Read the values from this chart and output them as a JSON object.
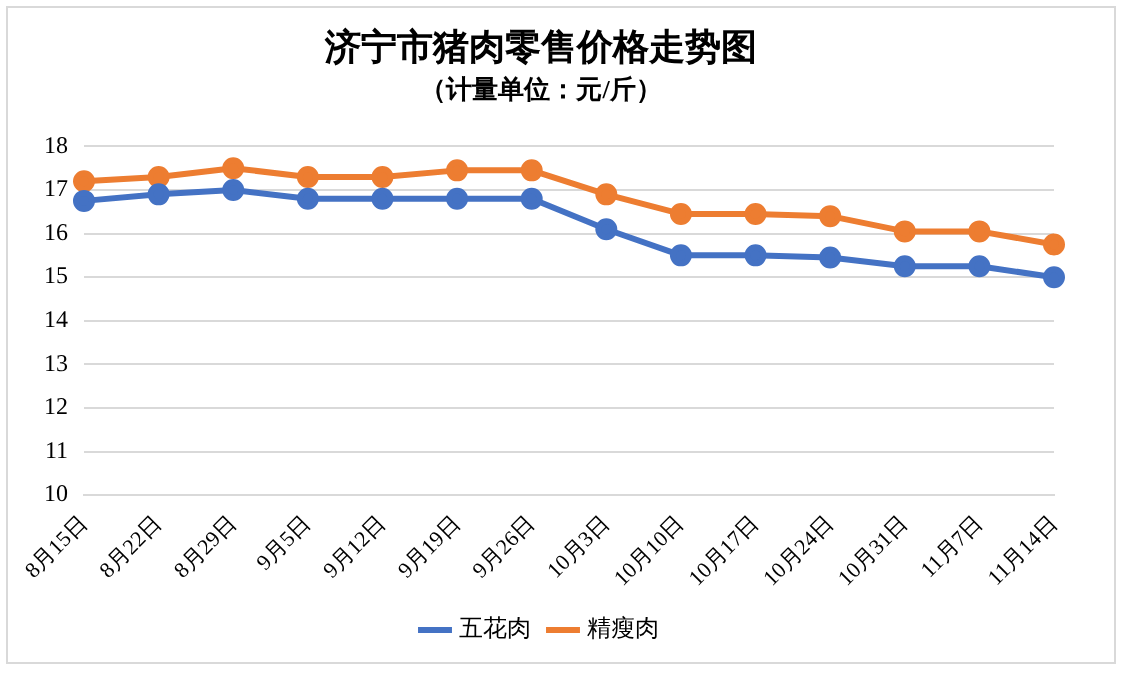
{
  "chart_data": {
    "type": "line",
    "title": "济宁市猪肉零售价格走势图",
    "subtitle": "（计量单位：元/斤）",
    "categories": [
      "8月15日",
      "8月22日",
      "8月29日",
      "9月5日",
      "9月12日",
      "9月19日",
      "9月26日",
      "10月3日",
      "10月10日",
      "10月17日",
      "10月24日",
      "10月31日",
      "11月7日",
      "11月14日"
    ],
    "series": [
      {
        "name": "五花肉",
        "color": "#4472c4",
        "values": [
          16.75,
          16.9,
          17.0,
          16.8,
          16.8,
          16.8,
          16.8,
          16.1,
          15.5,
          15.5,
          15.45,
          15.25,
          15.25,
          15.0
        ]
      },
      {
        "name": "精瘦肉",
        "color": "#ed7d31",
        "values": [
          17.2,
          17.3,
          17.5,
          17.3,
          17.3,
          17.45,
          17.45,
          16.9,
          16.45,
          16.45,
          16.4,
          16.05,
          16.05,
          15.75
        ]
      }
    ],
    "ylim": [
      10,
      18
    ],
    "yticks": [
      10,
      11,
      12,
      13,
      14,
      15,
      16,
      17,
      18
    ],
    "grid": "y",
    "legend": "bottom",
    "marker": "circle",
    "line_style": "solid"
  }
}
